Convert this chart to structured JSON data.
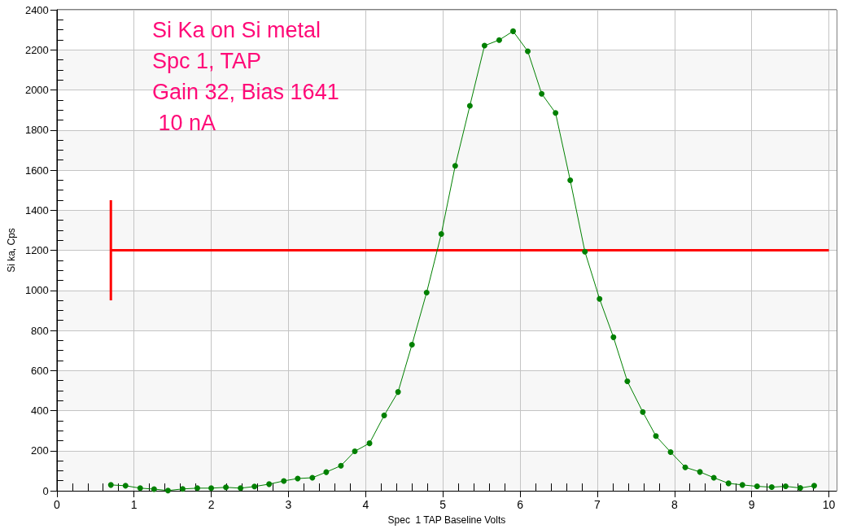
{
  "chart_data": {
    "type": "line",
    "xlabel": "Spec  1 TAP Baseline Volts",
    "ylabel": "Si ka, Cps",
    "annotations": [
      "Si Ka on Si metal",
      "Spc 1, TAP",
      "Gain 32, Bias 1641",
      " 10 nA"
    ],
    "xlim": [
      0,
      10.1
    ],
    "xticks": [
      0,
      1,
      2,
      3,
      4,
      5,
      6,
      7,
      8,
      9,
      10
    ],
    "ylim": [
      0,
      2400
    ],
    "yticks": [
      0,
      200,
      400,
      600,
      800,
      1000,
      1200,
      1400,
      1600,
      1800,
      2000,
      2200,
      2400
    ],
    "grid": true,
    "marker": "circle",
    "series": [
      {
        "color": "#008000",
        "x": [
          0.7,
          0.89,
          1.08,
          1.26,
          1.44,
          1.63,
          1.82,
          2.0,
          2.19,
          2.38,
          2.56,
          2.75,
          2.94,
          3.12,
          3.31,
          3.49,
          3.68,
          3.86,
          4.05,
          4.24,
          4.42,
          4.6,
          4.79,
          4.98,
          5.16,
          5.35,
          5.54,
          5.73,
          5.91,
          6.1,
          6.28,
          6.46,
          6.65,
          6.84,
          7.03,
          7.21,
          7.39,
          7.59,
          7.76,
          7.95,
          8.14,
          8.33,
          8.51,
          8.7,
          8.88,
          9.07,
          9.26,
          9.44,
          9.63,
          9.81
        ],
        "values": [
          29,
          25,
          13,
          8,
          1,
          9,
          13,
          13,
          17,
          13,
          21,
          33,
          49,
          61,
          65,
          93,
          125,
          197,
          237,
          376,
          493,
          729,
          989,
          1281,
          1621,
          1921,
          2221,
          2249,
          2293,
          2193,
          1981,
          1885,
          1549,
          1193,
          957,
          766,
          546,
          393,
          273,
          193,
          117,
          94,
          65,
          37,
          29,
          22,
          18,
          22,
          14,
          25
        ]
      },
      {
        "color": "#ff0000",
        "marker": "none",
        "x": [
          0.7,
          10
        ],
        "values": [
          1200,
          1200
        ]
      },
      {
        "color": "#ff0000",
        "marker": "none",
        "x": [
          0.7,
          0.7
        ],
        "values": [
          950,
          1450
        ]
      }
    ]
  }
}
